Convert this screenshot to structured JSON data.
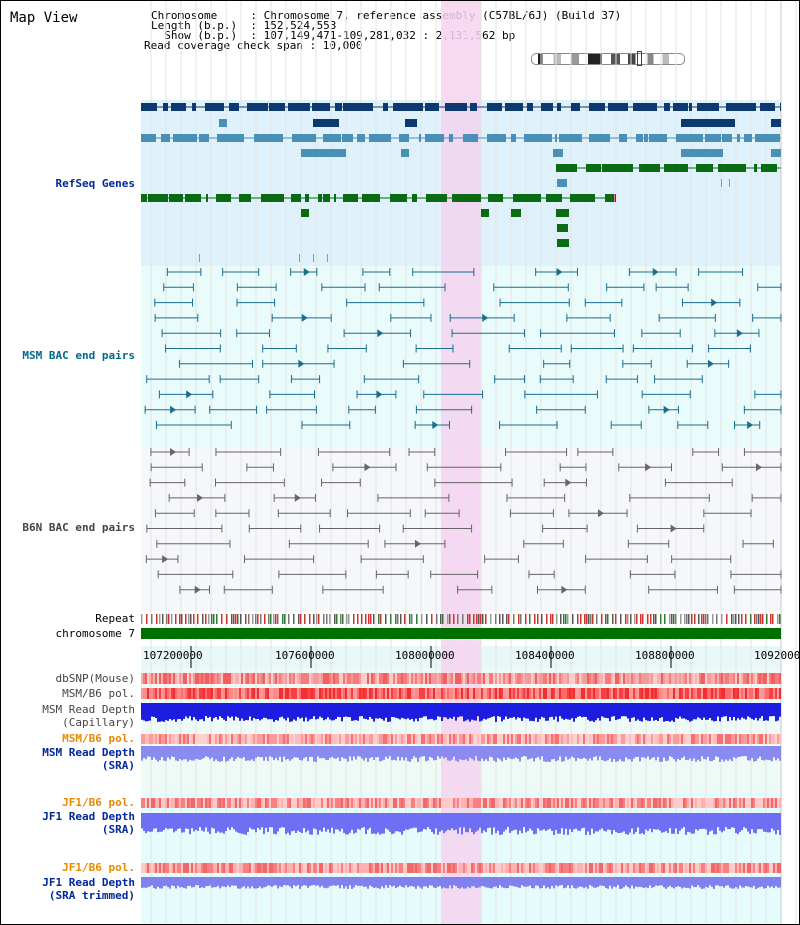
{
  "title": "Map View",
  "header": {
    "line1": "Chromosome     : Chromosome 7, reference assembly (C57BL/6J) (Build 37)",
    "line2": "Length (b.p.)  : 152,524,553",
    "line3": "  Show (b.p.)  : 107,149,471-109,281,032 : 2,131,562 bp",
    "line4": "Read coverage check span : 10,000"
  },
  "tracks": {
    "refseq": "RefSeq Genes",
    "msm_bac": "MSM BAC end pairs",
    "b6n_bac": "B6N BAC end pairs",
    "repeat": "Repeat",
    "chrom": "chromosome 7",
    "dbsnp": "dbSNP(Mouse)",
    "msm_b6_pol": "MSM/B6 pol.",
    "msm_depth_cap_1": "MSM Read Depth",
    "msm_depth_cap_2": "(Capillary)",
    "msm_b6_pol2": "MSM/B6 pol.",
    "msm_depth_sra_1": "MSM Read Depth",
    "msm_depth_sra_2": "(SRA)",
    "jf1_b6_pol": "JF1/B6 pol.",
    "jf1_depth_1": "JF1 Read Depth",
    "jf1_depth_2": "(SRA)",
    "jf1_b6_pol2": "JF1/B6 pol.",
    "jf1_depth_tr_1": "JF1 Read Depth",
    "jf1_depth_tr_2": "(SRA trimmed)"
  },
  "axis": {
    "ticks": [
      "107200000",
      "107600000",
      "108000000",
      "108400000",
      "108800000",
      "1092000"
    ]
  },
  "colors": {
    "refseq_bg": "#dff1fb",
    "msm_bac_bg": "#e9fbfb",
    "b6n_bac_bg": "#f5f7fb",
    "highlight": "#f6d2f0",
    "refseq_dark": "#0d3a6e",
    "refseq_mid": "#4a90b6",
    "refseq_green": "#0a6b12",
    "chrom_green": "#007000",
    "label_blue": "#00289c",
    "label_orange": "#e68a00",
    "label_teal": "#006a8a"
  }
}
